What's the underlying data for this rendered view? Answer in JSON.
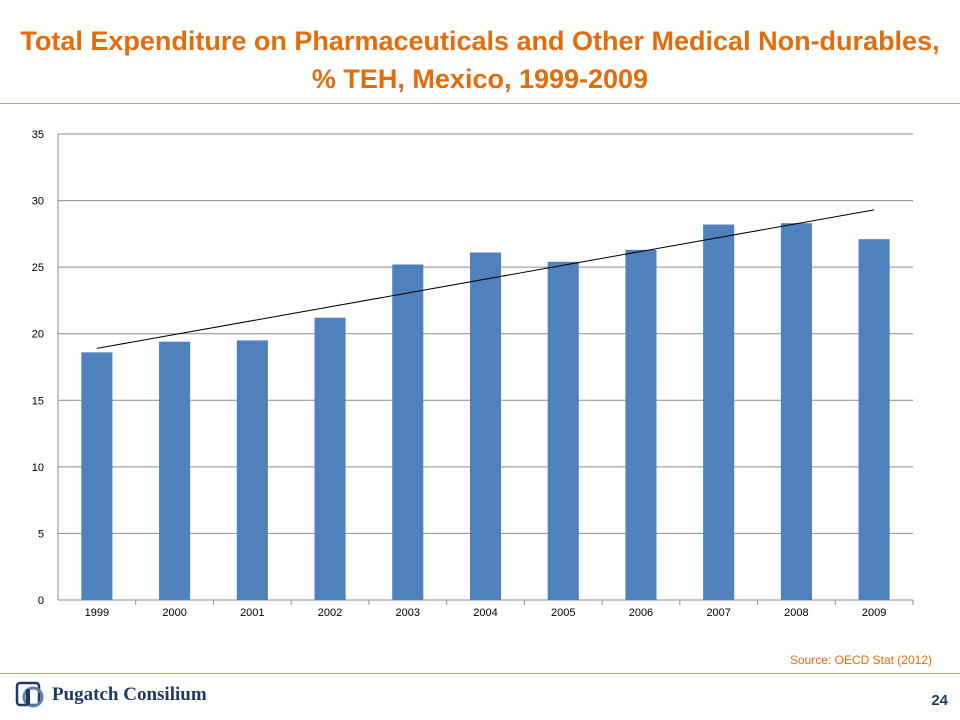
{
  "slide": {
    "title": "Total Expenditure on Pharmaceuticals and Other Medical Non-durables, % TEH, Mexico, 1999-2009",
    "source": "Source: OECD Stat (2012)",
    "logo_text": "Pugatch Consilium",
    "page_number": "24"
  },
  "colors": {
    "title": "#e46c0a",
    "bar": "#4f81bd",
    "trendline": "#000000",
    "gridline": "#8c8c8c",
    "logo": "#1f3864"
  },
  "chart_data": {
    "type": "bar",
    "categories": [
      "1999",
      "2000",
      "2001",
      "2002",
      "2003",
      "2004",
      "2005",
      "2006",
      "2007",
      "2008",
      "2009"
    ],
    "values": [
      18.6,
      19.4,
      19.5,
      21.2,
      25.2,
      26.1,
      25.4,
      26.3,
      28.2,
      28.3,
      27.1
    ],
    "ylim": [
      0,
      35
    ],
    "yticks": [
      0,
      5,
      10,
      15,
      20,
      25,
      30,
      35
    ],
    "grid": true,
    "legend": "none",
    "trendline": {
      "type": "linear",
      "start_value": 18.9,
      "end_value": 29.3
    }
  }
}
